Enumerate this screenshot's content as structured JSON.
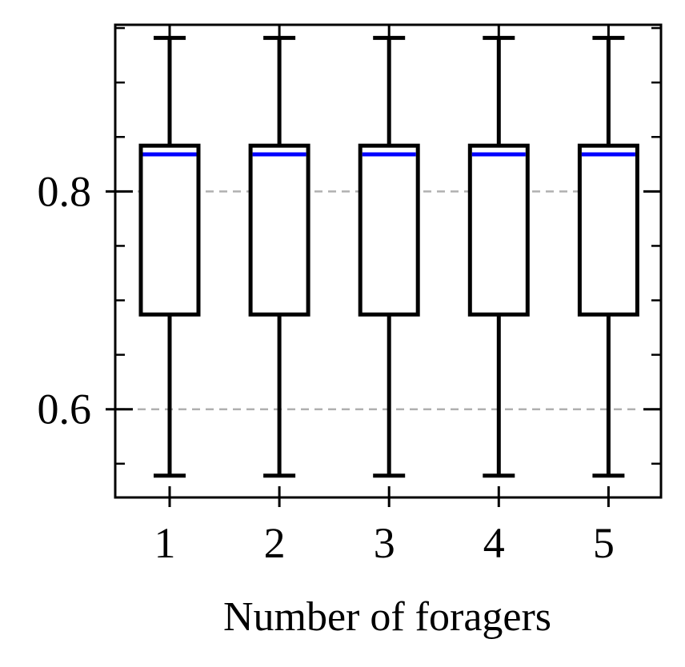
{
  "chart_data": {
    "type": "box",
    "title": "",
    "xlabel": "Number of foragers",
    "ylabel": "",
    "categories": [
      "1",
      "2",
      "3",
      "4",
      "5"
    ],
    "boxes": [
      {
        "category": "1",
        "whisker_low": 0.539,
        "q1": 0.687,
        "median": 0.834,
        "q3": 0.842,
        "whisker_high": 0.941
      },
      {
        "category": "2",
        "whisker_low": 0.539,
        "q1": 0.687,
        "median": 0.834,
        "q3": 0.842,
        "whisker_high": 0.941
      },
      {
        "category": "3",
        "whisker_low": 0.539,
        "q1": 0.687,
        "median": 0.834,
        "q3": 0.842,
        "whisker_high": 0.941
      },
      {
        "category": "4",
        "whisker_low": 0.539,
        "q1": 0.687,
        "median": 0.834,
        "q3": 0.842,
        "whisker_high": 0.941
      },
      {
        "category": "5",
        "whisker_low": 0.539,
        "q1": 0.687,
        "median": 0.834,
        "q3": 0.842,
        "whisker_high": 0.941
      }
    ],
    "ylim": [
      0.519,
      0.953
    ],
    "yticks": [
      0.6,
      0.8
    ],
    "ytick_labels": [
      "0.6",
      "0.8"
    ],
    "y_minor_step": 0.05,
    "grid": "horizontal dashed at major y ticks",
    "colors": {
      "box": "#000000",
      "median": "#0000ff",
      "grid": "#b0b0b0"
    }
  }
}
